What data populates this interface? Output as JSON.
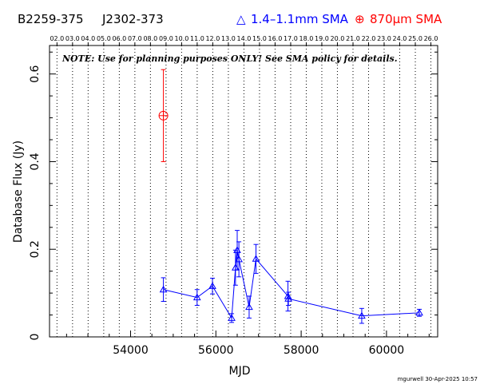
{
  "header": {
    "source_name": "B2259-375",
    "alt_name": "J2302-373",
    "legend_blue_symbol": "△",
    "legend_blue_label": "1.4–1.1mm SMA",
    "legend_red_symbol": "⊕",
    "legend_red_label": "870μm SMA"
  },
  "note": "NOTE: Use for planning purposes ONLY! See SMA policy for details.",
  "footer": "mgurwell 30-Apr-2025 10:57",
  "colors": {
    "blue_series": "#0000ff",
    "red_series": "#ff0000",
    "axis": "#000000"
  },
  "chart_data": {
    "type": "scatter",
    "xlabel": "MJD",
    "ylabel": "Database Flux (Jy)",
    "xlim": [
      52100,
      61200
    ],
    "ylim": [
      0,
      0.665
    ],
    "x_ticks": [
      54000,
      56000,
      58000,
      60000
    ],
    "x_tick_labels": [
      "54000",
      "56000",
      "58000",
      "60000"
    ],
    "y_ticks": [
      0,
      0.2,
      0.4,
      0.6
    ],
    "y_tick_labels": [
      "0",
      "0.2",
      "0.4",
      "0.6"
    ],
    "top_axis_labels": [
      "02.0",
      "03.0",
      "04.0",
      "05.0",
      "06.0",
      "07.0",
      "08.0",
      "09.0",
      "10.0",
      "11.0",
      "12.0",
      "13.0",
      "14.0",
      "15.0",
      "16.0",
      "17.0",
      "18.0",
      "19.0",
      "20.0",
      "21.0",
      "22.0",
      "23.0",
      "24.0",
      "25.0",
      "26.0"
    ],
    "top_axis_mjd": [
      52275,
      52640,
      53005,
      53371,
      53736,
      54101,
      54466,
      54832,
      55197,
      55562,
      55927,
      56293,
      56658,
      57023,
      57388,
      57754,
      58119,
      58484,
      58849,
      59215,
      59580,
      59945,
      60310,
      60676,
      61041
    ],
    "grid": "vertical dotted at year boundaries",
    "legend_position": "top, above plot",
    "series": [
      {
        "name": "1.4–1.1mm SMA",
        "marker": "triangle",
        "connected": true,
        "points": [
          {
            "x": 54770,
            "y": 0.108,
            "err": 0.027
          },
          {
            "x": 55560,
            "y": 0.09,
            "err": 0.018
          },
          {
            "x": 55920,
            "y": 0.116,
            "err": 0.018
          },
          {
            "x": 56370,
            "y": 0.043,
            "err": 0.01
          },
          {
            "x": 56460,
            "y": 0.158,
            "err": 0.04
          },
          {
            "x": 56500,
            "y": 0.198,
            "err": 0.045
          },
          {
            "x": 56540,
            "y": 0.177,
            "err": 0.04
          },
          {
            "x": 56780,
            "y": 0.068,
            "err": 0.025
          },
          {
            "x": 56940,
            "y": 0.178,
            "err": 0.033
          },
          {
            "x": 57690,
            "y": 0.093,
            "err": 0.034
          },
          {
            "x": 57700,
            "y": 0.087,
            "err": 0.015
          },
          {
            "x": 59420,
            "y": 0.048,
            "err": 0.017
          },
          {
            "x": 60770,
            "y": 0.055,
            "err": 0.008
          }
        ]
      },
      {
        "name": "870μm SMA",
        "marker": "circle-plus",
        "connected": false,
        "points": [
          {
            "x": 54770,
            "y": 0.505,
            "err": 0.105
          }
        ]
      }
    ]
  }
}
